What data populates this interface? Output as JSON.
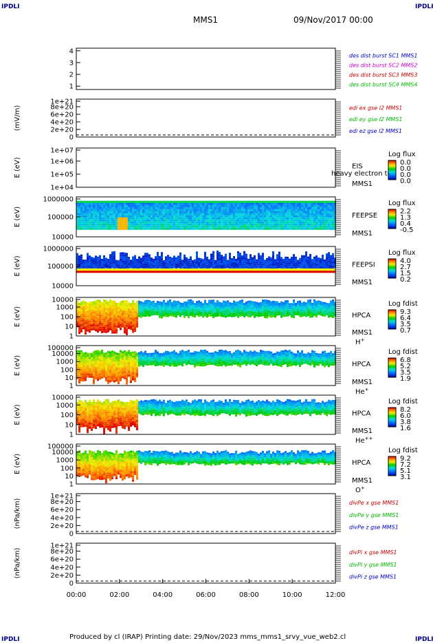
{
  "corners": {
    "tl": "IPDLI",
    "tr": "IPDLI",
    "bl": "IPDLI",
    "br": "IPDLI"
  },
  "header": {
    "spacecraft": "MMS1",
    "date": "09/Nov/2017 00:00"
  },
  "footer": "Produced by cl (IRAP)   Printing date: 29/Nov/2023   mms_mms1_srvy_vue_web2.cl",
  "colors": {
    "mms1": "#0000cc",
    "mms2": "#cc00cc",
    "mms3": "#cc0000",
    "mms4": "#00bb00",
    "frame": "#000000"
  },
  "chart_data": {
    "type": "stacked-timeseries",
    "x_ticks": [
      "00:00",
      "02:00",
      "04:00",
      "06:00",
      "08:00",
      "10:00",
      "12:00"
    ],
    "panels": [
      {
        "id": "burst",
        "type": "line",
        "ylabel": "",
        "ylim": [
          0.5,
          4.5
        ],
        "yticks": [
          "1",
          "2",
          "3",
          "4"
        ],
        "legend": [
          {
            "text": "des dist burst SC1 MMS1",
            "color": "#0000cc"
          },
          {
            "text": "des dist burst SC2 MMS2",
            "color": "#cc00cc"
          },
          {
            "text": "des dist burst SC3 MMS3",
            "color": "#cc0000"
          },
          {
            "text": "des dist burst SC4 MMS4",
            "color": "#00bb00"
          }
        ]
      },
      {
        "id": "edi",
        "type": "line",
        "ylabel": "(mV/m)",
        "yticks": [
          "0",
          "2e+20",
          "4e+20",
          "6e+20",
          "8e+20",
          "1e+21"
        ],
        "legend": [
          {
            "text": "edi ex gse l2 MMS1",
            "color": "#cc0000"
          },
          {
            "text": "edi ey gse l2 MMS1",
            "color": "#00bb00"
          },
          {
            "text": "edi ez gse l2 MMS1",
            "color": "#0000cc"
          }
        ]
      },
      {
        "id": "eis",
        "type": "heatmap",
        "ylabel": "E (eV)",
        "yticks": [
          "1e+04",
          "1e+05",
          "1e+06",
          "1e+07"
        ],
        "labels": [
          "EIS",
          "MMS1"
        ],
        "overlay": "heavy electron to",
        "cbar_title": "Log flux",
        "cbar_ticks": [
          "0.0",
          "0.0",
          "0.0",
          "0.0"
        ],
        "empty": true
      },
      {
        "id": "feepse",
        "type": "heatmap",
        "ylabel": "E (eV)",
        "yticks": [
          "10000",
          "100000",
          "1000000"
        ],
        "labels": [
          "FEEPSE",
          "MMS1"
        ],
        "cbar_title": "Log flux",
        "cbar_ticks": [
          "2.2",
          "1.3",
          "0.4",
          "-0.5"
        ]
      },
      {
        "id": "feepsi",
        "type": "heatmap",
        "ylabel": "E (eV)",
        "yticks": [
          "10000",
          "100000",
          "1000000"
        ],
        "labels": [
          "FEEPSI",
          "MMS1"
        ],
        "cbar_title": "Log flux",
        "cbar_ticks": [
          "4.0",
          "2.7",
          "1.5",
          "0.2"
        ]
      },
      {
        "id": "hpca-h",
        "type": "heatmap",
        "ylabel": "E (eV)",
        "yticks": [
          "1",
          "10",
          "100",
          "1000",
          "10000"
        ],
        "labels": [
          "HPCA",
          "MMS1"
        ],
        "species": "H",
        "species_sup": "+",
        "cbar_title": "Log fdist",
        "cbar_ticks": [
          "9.3",
          "6.4",
          "3.5",
          "0.7"
        ]
      },
      {
        "id": "hpca-he",
        "type": "heatmap",
        "ylabel": "E (eV)",
        "yticks": [
          "1",
          "10",
          "100",
          "1000",
          "10000",
          "100000"
        ],
        "labels": [
          "HPCA",
          "MMS1"
        ],
        "species": "He",
        "species_sup": "+",
        "cbar_title": "Log fdist",
        "cbar_ticks": [
          "6.8",
          "5.2",
          "3.5",
          "1.9"
        ]
      },
      {
        "id": "hpca-he2",
        "type": "heatmap",
        "ylabel": "E (eV)",
        "yticks": [
          "1",
          "10",
          "100",
          "1000",
          "10000"
        ],
        "labels": [
          "HPCA",
          "MMS1"
        ],
        "species": "He",
        "species_sup": "++",
        "cbar_title": "Log fdist",
        "cbar_ticks": [
          "8.2",
          "6.0",
          "3.8",
          "1.6"
        ]
      },
      {
        "id": "hpca-o",
        "type": "heatmap",
        "ylabel": "E (eV)",
        "yticks": [
          "1",
          "10",
          "100",
          "1000",
          "10000",
          "100000"
        ],
        "labels": [
          "HPCA",
          "MMS1"
        ],
        "species": "O",
        "species_sup": "+",
        "cbar_title": "Log fdist",
        "cbar_ticks": [
          "9.2",
          "7.2",
          "5.1",
          "3.1"
        ]
      },
      {
        "id": "divpe",
        "type": "line",
        "ylabel": "(nPa/km)",
        "yticks": [
          "0",
          "2e+20",
          "4e+20",
          "6e+20",
          "8e+20",
          "1e+21"
        ],
        "legend": [
          {
            "text": "divPe x gse MMS1",
            "color": "#cc0000"
          },
          {
            "text": "divPe y gse MMS1",
            "color": "#00bb00"
          },
          {
            "text": "divPe z gse MMS1",
            "color": "#0000cc"
          }
        ]
      },
      {
        "id": "divpi",
        "type": "line",
        "ylabel": "(nPa/km)",
        "yticks": [
          "0",
          "2e+20",
          "4e+20",
          "6e+20",
          "8e+20",
          "1e+21"
        ],
        "legend": [
          {
            "text": "divPi x gse MMS1",
            "color": "#cc0000"
          },
          {
            "text": "divPi y gse MMS1",
            "color": "#00bb00"
          },
          {
            "text": "divPi z gse MMS1",
            "color": "#0000cc"
          }
        ]
      }
    ]
  }
}
